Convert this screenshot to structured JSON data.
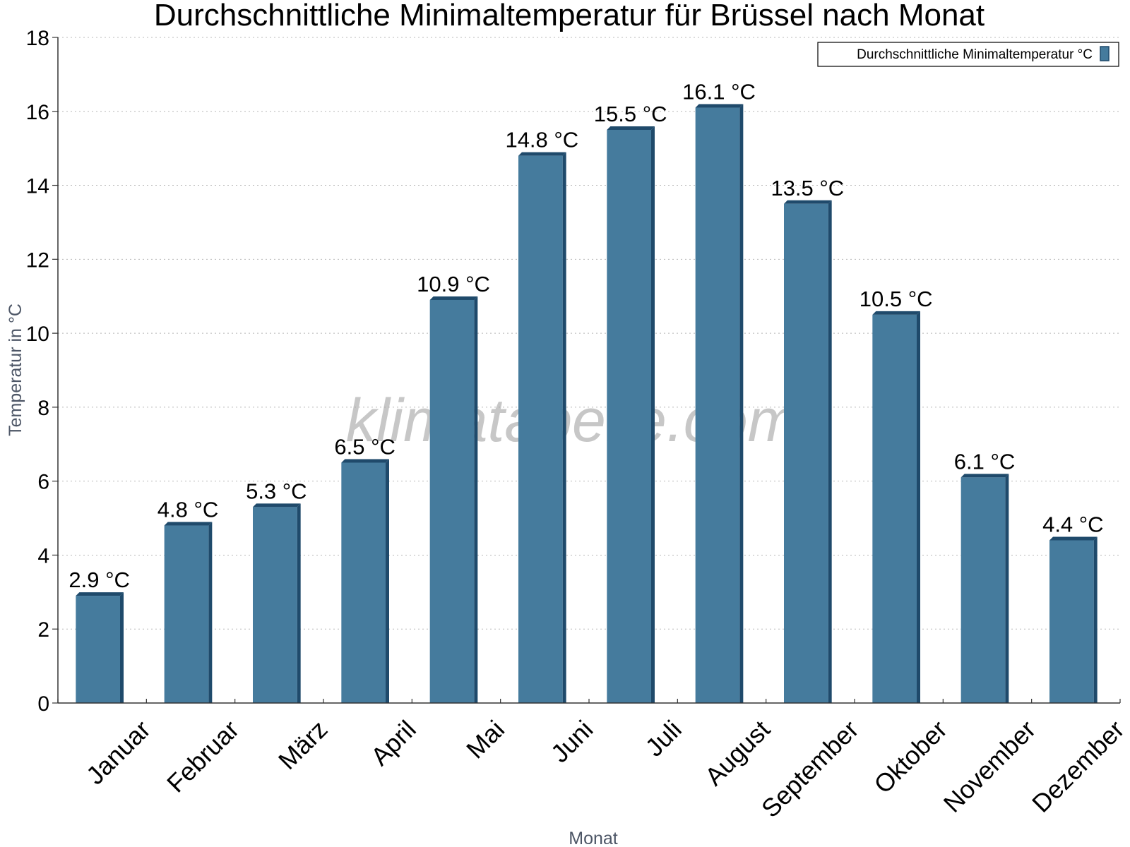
{
  "watermark": "klimatabelle.com",
  "chart_data": {
    "type": "bar",
    "title": "Durchschnittliche Minimaltemperatur für Brüssel nach Monat",
    "xlabel": "Monat",
    "ylabel": "Temperatur in °C",
    "ylim": [
      0,
      18
    ],
    "yticks": [
      "0",
      "2",
      "4",
      "6",
      "8",
      "10",
      "12",
      "14",
      "16",
      "18"
    ],
    "grid": true,
    "legend_position": "top-right",
    "categories": [
      "Januar",
      "Februar",
      "März",
      "April",
      "Mai",
      "Juni",
      "Juli",
      "August",
      "September",
      "Oktober",
      "November",
      "Dezember"
    ],
    "series": [
      {
        "name": "Durchschnittliche Minimaltemperatur °C",
        "color": "#457b9d",
        "values": [
          2.9,
          4.8,
          5.3,
          6.5,
          10.9,
          14.8,
          15.5,
          16.1,
          13.5,
          10.5,
          6.1,
          4.4
        ],
        "labels": [
          "2.9 °C",
          "4.8 °C",
          "5.3 °C",
          "6.5 °C",
          "10.9 °C",
          "14.8 °C",
          "15.5 °C",
          "16.1 °C",
          "13.5 °C",
          "10.5 °C",
          "6.1 °C",
          "4.4 °C"
        ]
      }
    ]
  }
}
